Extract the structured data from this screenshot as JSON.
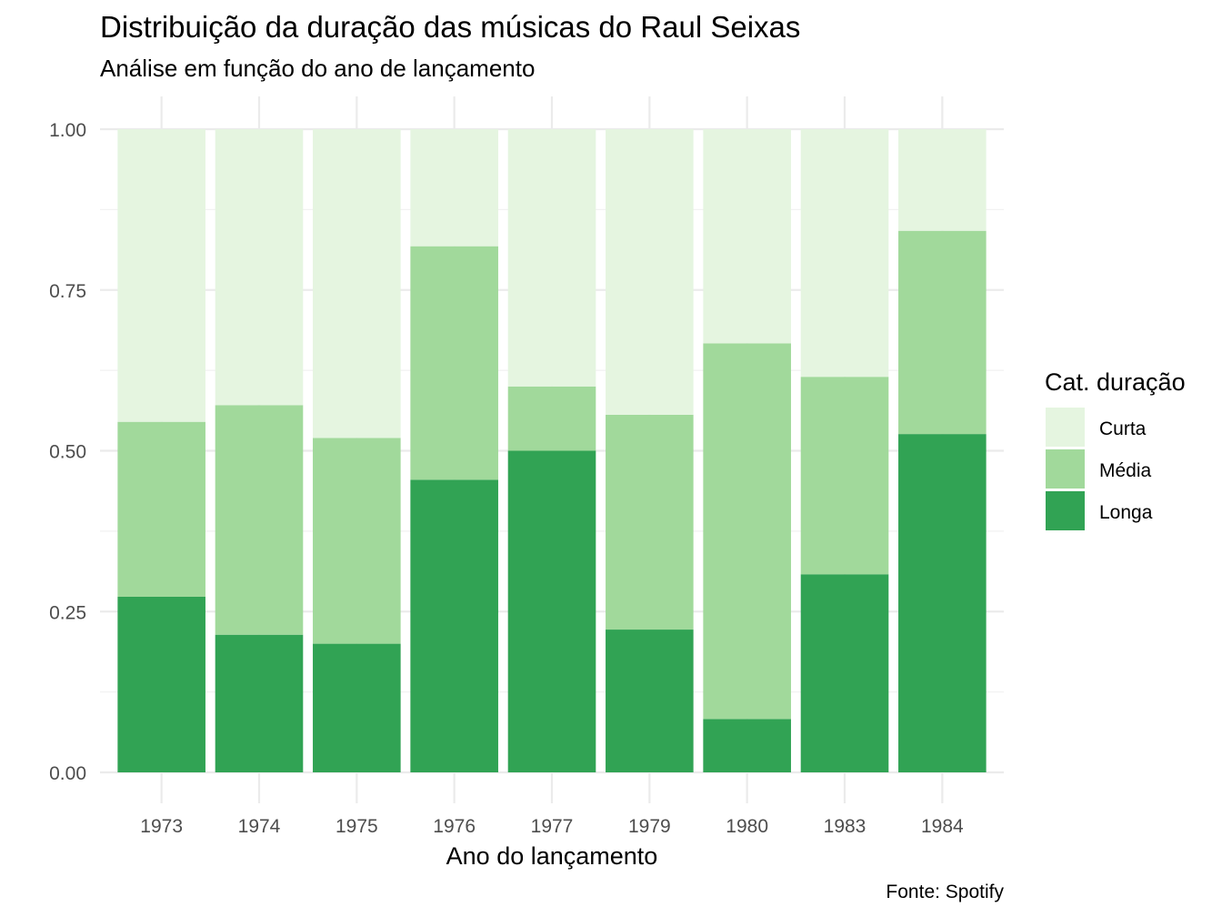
{
  "chart_data": {
    "type": "bar",
    "stacked": true,
    "title": "Distribuição da duração das músicas do Raul Seixas",
    "subtitle": "Análise em função do ano de lançamento",
    "xlabel": "Ano do lançamento",
    "ylabel": "",
    "caption": "Fonte: Spotify",
    "categories": [
      "1973",
      "1974",
      "1975",
      "1976",
      "1977",
      "1979",
      "1980",
      "1983",
      "1984"
    ],
    "ylim": [
      0,
      1
    ],
    "yticks": [
      "0.00",
      "0.25",
      "0.50",
      "0.75",
      "1.00"
    ],
    "ytick_values": [
      0,
      0.25,
      0.5,
      0.75,
      1.0
    ],
    "grid": true,
    "legend": {
      "title": "Cat. duração",
      "position": "right"
    },
    "series": [
      {
        "name": "Longa",
        "color": "#31a354",
        "values": [
          0.273,
          0.214,
          0.2,
          0.455,
          0.5,
          0.222,
          0.083,
          0.308,
          0.526
        ]
      },
      {
        "name": "Média",
        "color": "#a1d99b",
        "values": [
          0.272,
          0.357,
          0.32,
          0.363,
          0.1,
          0.334,
          0.584,
          0.307,
          0.316
        ]
      },
      {
        "name": "Curta",
        "color": "#e5f5e0",
        "values": [
          0.455,
          0.429,
          0.48,
          0.182,
          0.4,
          0.444,
          0.333,
          0.385,
          0.158
        ]
      }
    ],
    "legend_order": [
      "Curta",
      "Média",
      "Longa"
    ]
  }
}
